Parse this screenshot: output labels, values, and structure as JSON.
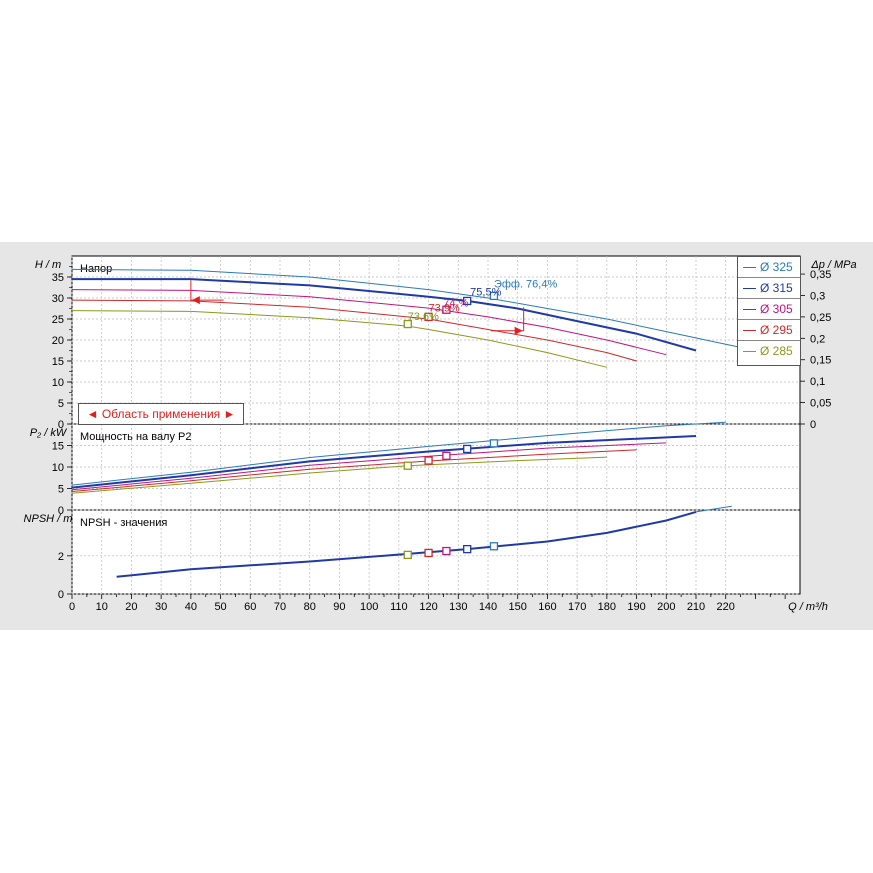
{
  "chart_data": {
    "type": "line",
    "colors": {
      "325": "#2a7ab8",
      "315": "#1f3aa6",
      "305": "#c0157e",
      "295": "#cc2a2a",
      "285": "#8a9a1a"
    },
    "legend": [
      "Ø 325",
      "Ø 315",
      "Ø 305",
      "Ø 295",
      "Ø 285"
    ],
    "range_label": "◄ Область применения ►",
    "x": {
      "label": "Q / m³/h",
      "min": 0,
      "max": 245,
      "ticks": [
        0,
        10,
        20,
        30,
        40,
        50,
        60,
        70,
        80,
        90,
        100,
        110,
        120,
        130,
        140,
        150,
        160,
        170,
        180,
        190,
        200,
        210,
        220
      ]
    },
    "panels": [
      {
        "id": "head",
        "title": "Напор",
        "ylabel": "H / m",
        "ylabel_right": "Δp / MPa",
        "ylim": [
          0,
          40
        ],
        "yticks": [
          0,
          5,
          10,
          15,
          20,
          25,
          30,
          35
        ],
        "yticks_right": [
          [
            "0",
            0
          ],
          [
            "0,05",
            5.1
          ],
          [
            "0,1",
            10.2
          ],
          [
            "0,15",
            15.3
          ],
          [
            "0,2",
            20.4
          ],
          [
            "0,25",
            25.5
          ],
          [
            "0,3",
            30.6
          ],
          [
            "0,35",
            35.7
          ]
        ],
        "series": [
          {
            "name": "Ø 325",
            "key": "325",
            "width": 1,
            "points": [
              [
                0,
                36.8
              ],
              [
                40,
                36.6
              ],
              [
                80,
                35
              ],
              [
                120,
                32
              ],
              [
                140,
                30
              ],
              [
                160,
                27.5
              ],
              [
                180,
                25
              ],
              [
                200,
                22
              ],
              [
                220,
                19
              ],
              [
                230,
                17.5
              ]
            ]
          },
          {
            "name": "Ø 315",
            "key": "315",
            "width": 2,
            "points": [
              [
                0,
                34.5
              ],
              [
                40,
                34.5
              ],
              [
                80,
                33
              ],
              [
                120,
                30.3
              ],
              [
                133,
                29.3
              ],
              [
                150,
                27.5
              ],
              [
                170,
                24.5
              ],
              [
                190,
                21.5
              ],
              [
                210,
                17.5
              ]
            ]
          },
          {
            "name": "Ø 305",
            "key": "305",
            "width": 1,
            "points": [
              [
                0,
                32
              ],
              [
                40,
                31.8
              ],
              [
                80,
                30.3
              ],
              [
                120,
                27.6
              ],
              [
                140,
                25.5
              ],
              [
                160,
                23
              ],
              [
                180,
                20
              ],
              [
                200,
                16.5
              ]
            ]
          },
          {
            "name": "Ø 295",
            "key": "295",
            "width": 1,
            "points": [
              [
                0,
                29.5
              ],
              [
                40,
                29.3
              ],
              [
                80,
                27.8
              ],
              [
                120,
                25
              ],
              [
                140,
                22.5
              ],
              [
                160,
                20
              ],
              [
                180,
                17
              ],
              [
                190,
                15
              ]
            ]
          },
          {
            "name": "Ø 285",
            "key": "285",
            "width": 1,
            "points": [
              [
                0,
                27
              ],
              [
                40,
                26.8
              ],
              [
                80,
                25.3
              ],
              [
                113,
                23.3
              ],
              [
                120,
                22.5
              ],
              [
                140,
                20
              ],
              [
                160,
                17
              ],
              [
                180,
                13.5
              ]
            ]
          }
        ],
        "markers": [
          {
            "key": "325",
            "x": 142,
            "y": 30.5
          },
          {
            "key": "315",
            "x": 133,
            "y": 29.3
          },
          {
            "key": "305",
            "x": 126,
            "y": 27.2
          },
          {
            "key": "295",
            "x": 120,
            "y": 25.5
          },
          {
            "key": "285",
            "x": 113,
            "y": 23.8
          }
        ],
        "annotations": [
          {
            "text": "Эфф.  76,4%",
            "key": "325",
            "x": 142,
            "y": 32.5
          },
          {
            "text": "75,5%",
            "key": "315",
            "x": 134,
            "y": 30.6
          },
          {
            "text": "74,%",
            "key": "305",
            "x": 125,
            "y": 28.0
          },
          {
            "text": "73,9%",
            "key": "295",
            "x": 120,
            "y": 26.8
          },
          {
            "text": "73,6%",
            "key": "285",
            "x": 113,
            "y": 24.8
          }
        ]
      },
      {
        "id": "power",
        "title": "Мощность на валу P2",
        "ylabel": "P₂ / kW",
        "ylim": [
          0,
          20
        ],
        "yticks": [
          0,
          5,
          10,
          15
        ],
        "series": [
          {
            "name": "Ø 325",
            "key": "325",
            "width": 1,
            "points": [
              [
                0,
                5.8
              ],
              [
                40,
                8.8
              ],
              [
                80,
                12.2
              ],
              [
                120,
                14.8
              ],
              [
                160,
                17.3
              ],
              [
                200,
                19.6
              ],
              [
                220,
                20.4
              ]
            ]
          },
          {
            "name": "Ø 315",
            "key": "315",
            "width": 2,
            "points": [
              [
                0,
                5.2
              ],
              [
                40,
                8.1
              ],
              [
                80,
                11.3
              ],
              [
                120,
                13.6
              ],
              [
                160,
                15.6
              ],
              [
                210,
                17.2
              ]
            ]
          },
          {
            "name": "Ø 305",
            "key": "305",
            "width": 1,
            "points": [
              [
                0,
                4.7
              ],
              [
                40,
                7.4
              ],
              [
                80,
                10.4
              ],
              [
                120,
                12.5
              ],
              [
                160,
                14.4
              ],
              [
                200,
                15.6
              ]
            ]
          },
          {
            "name": "Ø 295",
            "key": "295",
            "width": 1,
            "points": [
              [
                0,
                4.3
              ],
              [
                40,
                6.8
              ],
              [
                80,
                9.5
              ],
              [
                120,
                11.4
              ],
              [
                160,
                13
              ],
              [
                190,
                14
              ]
            ]
          },
          {
            "name": "Ø 285",
            "key": "285",
            "width": 1,
            "points": [
              [
                0,
                3.9
              ],
              [
                40,
                6.2
              ],
              [
                80,
                8.6
              ],
              [
                113,
                10.3
              ],
              [
                150,
                11.5
              ],
              [
                180,
                12.3
              ]
            ]
          }
        ],
        "markers": [
          {
            "key": "325",
            "x": 142,
            "y": 15.5
          },
          {
            "key": "315",
            "x": 133,
            "y": 14.2
          },
          {
            "key": "305",
            "x": 126,
            "y": 12.6
          },
          {
            "key": "295",
            "x": 120,
            "y": 11.5
          },
          {
            "key": "285",
            "x": 113,
            "y": 10.3
          }
        ]
      },
      {
        "id": "npsh",
        "title": "NPSH - значения",
        "ylabel": "NPSH / m",
        "ylim": [
          0,
          4.4
        ],
        "yticks": [
          0,
          2
        ],
        "series": [
          {
            "name": "Ø 315",
            "key": "315",
            "width": 2,
            "points": [
              [
                15,
                0.9
              ],
              [
                40,
                1.3
              ],
              [
                80,
                1.7
              ],
              [
                113,
                2.1
              ],
              [
                133,
                2.35
              ],
              [
                160,
                2.75
              ],
              [
                180,
                3.2
              ],
              [
                200,
                3.85
              ],
              [
                210,
                4.3
              ]
            ]
          },
          {
            "name": "Ø 325",
            "key": "325",
            "width": 1,
            "points": [
              [
                210,
                4.3
              ],
              [
                222,
                4.6
              ]
            ]
          }
        ],
        "markers": [
          {
            "key": "325",
            "x": 142,
            "y": 2.5
          },
          {
            "key": "315",
            "x": 133,
            "y": 2.35
          },
          {
            "key": "305",
            "x": 126,
            "y": 2.25
          },
          {
            "key": "295",
            "x": 120,
            "y": 2.15
          },
          {
            "key": "285",
            "x": 113,
            "y": 2.05
          }
        ]
      }
    ]
  }
}
